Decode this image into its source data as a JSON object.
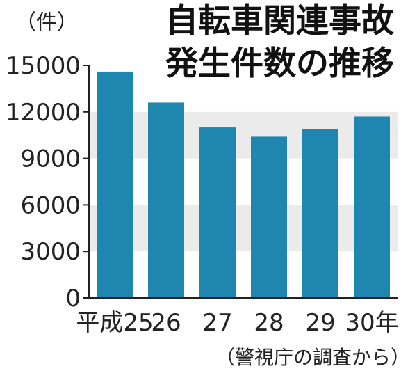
{
  "chart_data": {
    "type": "bar",
    "title_lines": [
      "自転車関連事故",
      "発生件数の推移"
    ],
    "unit_label": "（件）",
    "source": "（警視庁の調査から）",
    "categories": [
      "平成25",
      "26",
      "27",
      "28",
      "29",
      "30年"
    ],
    "values": [
      14600,
      12600,
      11000,
      10400,
      10900,
      11700
    ],
    "ylim": [
      0,
      15000
    ],
    "yticks": [
      0,
      3000,
      6000,
      9000,
      12000,
      15000
    ],
    "bar_color": "#1f86b0",
    "band_color": "#ebebeb",
    "grid": false
  }
}
